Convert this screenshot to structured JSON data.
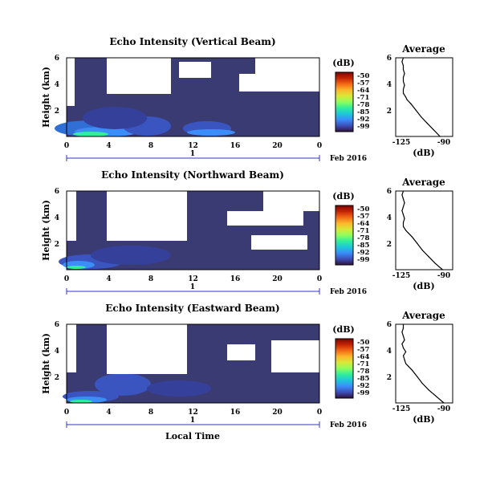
{
  "xlabel": "Local Time",
  "time_bar_label": "1",
  "date_label": "Feb 2016",
  "colorbar_unit": "(dB)",
  "colorbar_ticks": [
    "-50",
    "-57",
    "-64",
    "-71",
    "-78",
    "-85",
    "-92",
    "-99"
  ],
  "colormap": [
    "#30123b",
    "#3e4fb8",
    "#3b8dfa",
    "#1ec7d8",
    "#30ee9b",
    "#8ffe5c",
    "#d8e838",
    "#fbb82c",
    "#f36a16",
    "#c52304",
    "#7a0403"
  ],
  "background_color": "#3b3b74",
  "chart_data": [
    {
      "type": "heatmap",
      "title": "Echo Intensity (Vertical Beam)",
      "xlabel": "",
      "ylabel": "Height (km)",
      "x_ticks": [
        "0",
        "4",
        "8",
        "12",
        "16",
        "20",
        "0"
      ],
      "y_ticks": [
        "2",
        "4",
        "6"
      ],
      "xlim": [
        0,
        24
      ],
      "ylim": [
        0,
        6
      ],
      "clim": [
        -99,
        -50
      ],
      "description_cells": [
        {
          "x": [
            0,
            4
          ],
          "y": [
            0,
            0.5
          ],
          "value": -80
        },
        {
          "x": [
            4,
            8
          ],
          "y": [
            0,
            0.5
          ],
          "value": -88
        },
        {
          "x": [
            8,
            12
          ],
          "y": [
            0,
            0.5
          ],
          "value": -92
        },
        {
          "x": [
            12,
            16
          ],
          "y": [
            0,
            0.5
          ],
          "value": -85
        },
        {
          "x": [
            16,
            24
          ],
          "y": [
            0,
            0.5
          ],
          "value": -95
        },
        {
          "x": [
            0,
            6
          ],
          "y": [
            0.5,
            2
          ],
          "value": -94
        },
        {
          "x": [
            6,
            14
          ],
          "y": [
            0.5,
            1.5
          ],
          "value": -95
        }
      ]
    },
    {
      "type": "heatmap",
      "title": "Echo Intensity (Northward Beam)",
      "xlabel": "",
      "ylabel": "Height (km)",
      "x_ticks": [
        "0",
        "4",
        "8",
        "12",
        "16",
        "20",
        "0"
      ],
      "y_ticks": [
        "2",
        "4",
        "6"
      ],
      "xlim": [
        0,
        24
      ],
      "ylim": [
        0,
        6
      ],
      "clim": [
        -99,
        -50
      ],
      "description_cells": [
        {
          "x": [
            0,
            2
          ],
          "y": [
            0,
            0.5
          ],
          "value": -82
        },
        {
          "x": [
            2,
            8
          ],
          "y": [
            0,
            0.8
          ],
          "value": -90
        },
        {
          "x": [
            8,
            24
          ],
          "y": [
            0,
            0.3
          ],
          "value": -95
        }
      ]
    },
    {
      "type": "heatmap",
      "title": "Echo Intensity (Eastward Beam)",
      "xlabel": "Local Time",
      "ylabel": "Height (km)",
      "x_ticks": [
        "0",
        "4",
        "8",
        "12",
        "16",
        "20",
        "0"
      ],
      "y_ticks": [
        "2",
        "4",
        "6"
      ],
      "xlim": [
        0,
        24
      ],
      "ylim": [
        0,
        6
      ],
      "clim": [
        -99,
        -50
      ],
      "description_cells": [
        {
          "x": [
            0,
            2
          ],
          "y": [
            0,
            0.4
          ],
          "value": -80
        },
        {
          "x": [
            2,
            8
          ],
          "y": [
            0,
            1.5
          ],
          "value": -90
        },
        {
          "x": [
            8,
            24
          ],
          "y": [
            0,
            0.3
          ],
          "value": -94
        }
      ]
    },
    {
      "type": "line",
      "title": "Average",
      "xlabel": "(dB)",
      "ylabel": "",
      "x_ticks": [
        "-125",
        "-90"
      ],
      "y_ticks": [
        "2",
        "4",
        "6"
      ],
      "xlim": [
        -130,
        -85
      ],
      "ylim": [
        0,
        6
      ],
      "x": [
        -95,
        -100,
        -105,
        -110,
        -114,
        -118,
        -121,
        -122,
        -124,
        -124,
        -123,
        -124,
        -124,
        -123,
        -124,
        -124,
        -125,
        -124
      ],
      "y": [
        0,
        0.5,
        1.0,
        1.5,
        2.0,
        2.5,
        2.8,
        3.0,
        3.3,
        3.6,
        3.9,
        4.2,
        4.5,
        4.8,
        5.1,
        5.4,
        5.7,
        6.0
      ]
    },
    {
      "type": "line",
      "title": "Average",
      "xlabel": "(dB)",
      "ylabel": "",
      "x_ticks": [
        "-125",
        "-90"
      ],
      "y_ticks": [
        "2",
        "4",
        "6"
      ],
      "xlim": [
        -130,
        -85
      ],
      "ylim": [
        0,
        6
      ],
      "x": [
        -93,
        -99,
        -104,
        -109,
        -113,
        -117,
        -120,
        -122,
        -124,
        -124,
        -123,
        -124,
        -125,
        -124,
        -123,
        -124,
        -125,
        -124
      ],
      "y": [
        0,
        0.5,
        1.0,
        1.5,
        2.0,
        2.5,
        2.8,
        3.0,
        3.3,
        3.6,
        3.9,
        4.2,
        4.5,
        4.8,
        5.1,
        5.4,
        5.7,
        6.0
      ]
    },
    {
      "type": "line",
      "title": "Average",
      "xlabel": "(dB)",
      "ylabel": "",
      "x_ticks": [
        "-125",
        "-90"
      ],
      "y_ticks": [
        "2",
        "4",
        "6"
      ],
      "xlim": [
        -130,
        -85
      ],
      "ylim": [
        0,
        6
      ],
      "x": [
        -92,
        -98,
        -104,
        -109,
        -113,
        -117,
        -120,
        -122,
        -123,
        -124,
        -122,
        -124,
        -125,
        -123,
        -124,
        -125,
        -124,
        -124
      ],
      "y": [
        0,
        0.5,
        1.0,
        1.5,
        2.0,
        2.5,
        2.8,
        3.0,
        3.3,
        3.6,
        3.9,
        4.2,
        4.5,
        4.8,
        5.1,
        5.4,
        5.7,
        6.0
      ]
    }
  ]
}
